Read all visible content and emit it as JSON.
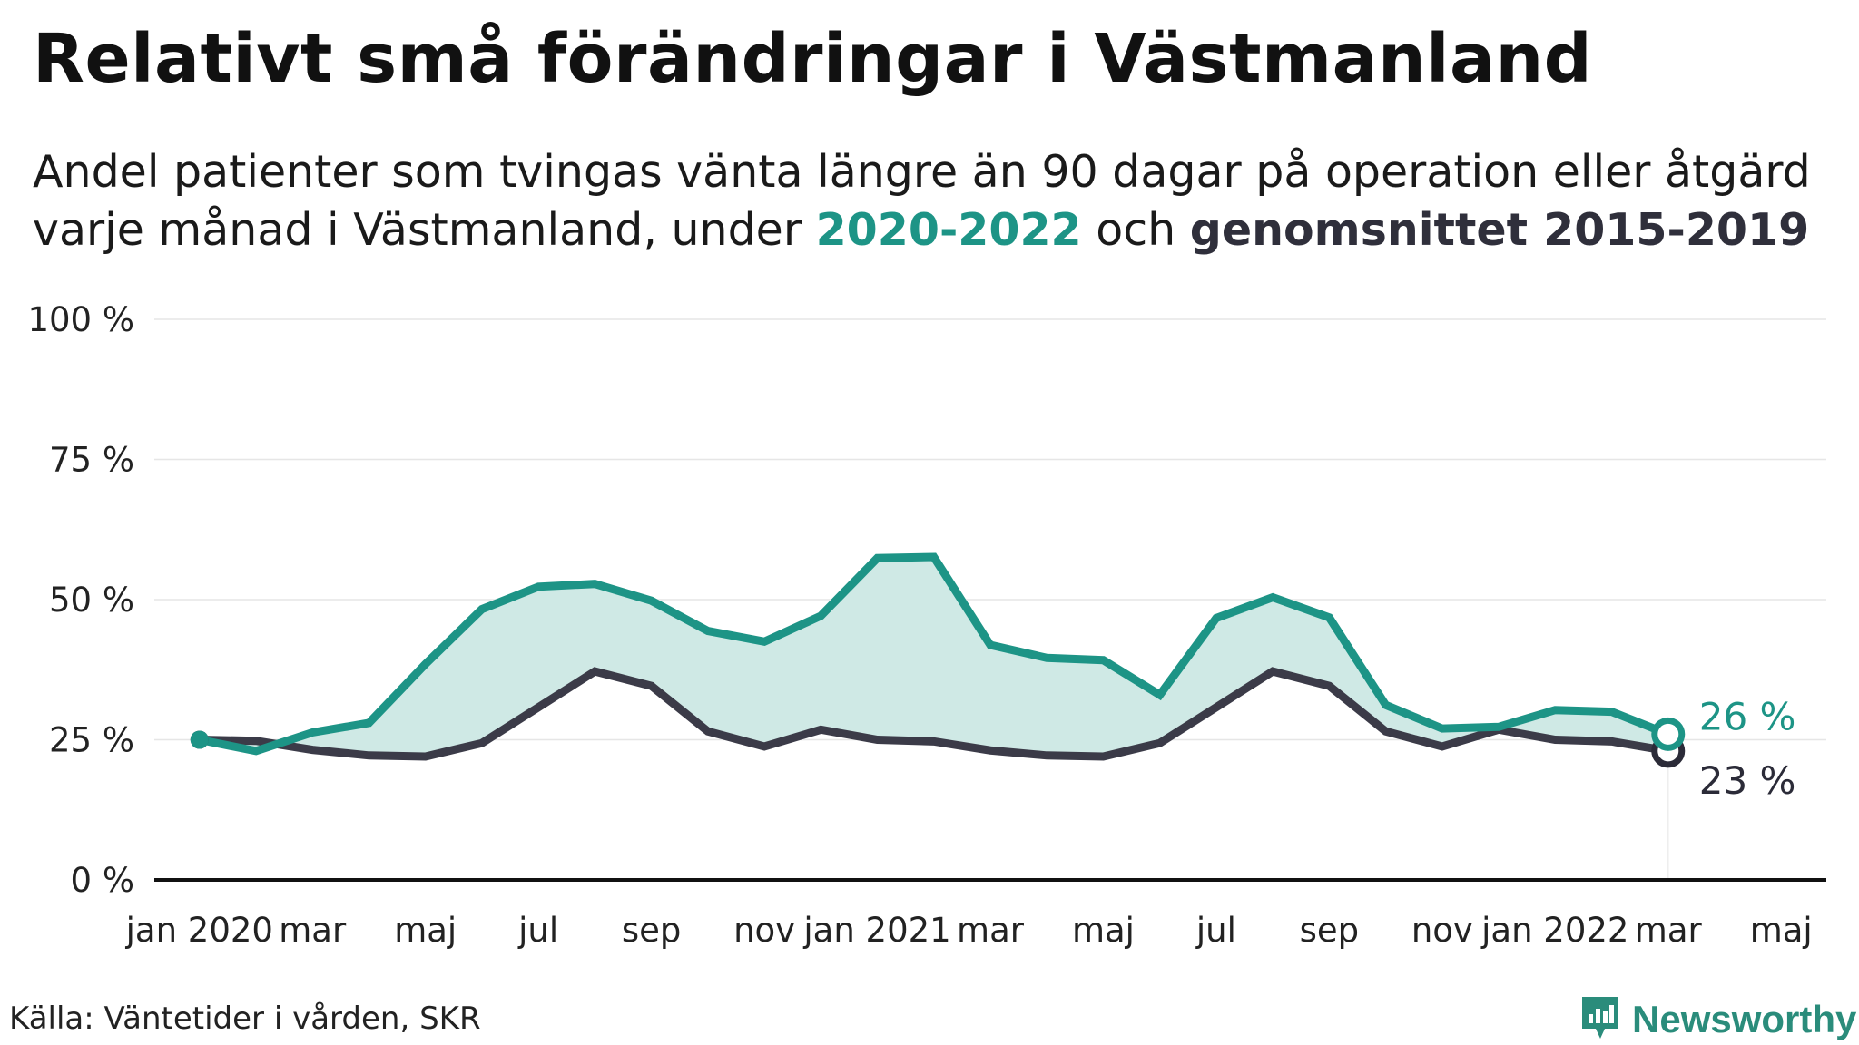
{
  "title": "Relativt små förändringar i Västmanland",
  "subtitle": {
    "line1": "Andel patienter som tvingas vänta längre än 90 dagar på operation eller åtgärd",
    "line2_prefix": "varje månad i Västmanland, under ",
    "highlight_current": "2020-2022",
    "line2_middle": " och ",
    "highlight_average": "genomsnittet 2015-2019"
  },
  "colors": {
    "current": "#1d9486",
    "average": "#3b3b48",
    "fill": "#cfe9e5",
    "grid": "#e6e6e6",
    "axis": "#111111"
  },
  "chart_data": {
    "type": "line",
    "ylim": [
      0,
      100
    ],
    "y_ticks": [
      "0 %",
      "25 %",
      "50 %",
      "75 %",
      "100 %"
    ],
    "y_tick_values": [
      0,
      25,
      50,
      75,
      100
    ],
    "x_tick_labels": [
      {
        "label": "jan 2020",
        "month": 0
      },
      {
        "label": "mar",
        "month": 2
      },
      {
        "label": "maj",
        "month": 4
      },
      {
        "label": "jul",
        "month": 6
      },
      {
        "label": "sep",
        "month": 8
      },
      {
        "label": "nov",
        "month": 10
      },
      {
        "label": "jan 2021",
        "month": 12
      },
      {
        "label": "mar",
        "month": 14
      },
      {
        "label": "maj",
        "month": 16
      },
      {
        "label": "jul",
        "month": 18
      },
      {
        "label": "sep",
        "month": 20
      },
      {
        "label": "nov",
        "month": 22
      },
      {
        "label": "jan 2022",
        "month": 24
      },
      {
        "label": "mar",
        "month": 26
      },
      {
        "label": "maj",
        "month": 28
      }
    ],
    "x_range_months": [
      -0.8,
      28.8
    ],
    "series": [
      {
        "key": "current",
        "name": "2020-2022",
        "values": [
          25,
          23,
          26.3,
          28,
          38.5,
          48.3,
          52.3,
          52.8,
          49.8,
          44.4,
          42.5,
          47.1,
          57.4,
          57.6,
          41.9,
          39.6,
          39.2,
          33,
          46.7,
          50.4,
          46.8,
          31.2,
          27,
          27.3,
          30.3,
          30,
          26
        ]
      },
      {
        "key": "average",
        "name": "genomsnittet 2015-2019",
        "values": [
          25,
          24.8,
          23.2,
          22.2,
          22,
          24.4,
          30.8,
          37.2,
          34.6,
          26.5,
          23.8,
          26.8,
          25,
          24.7,
          23.1,
          22.2,
          22,
          24.4,
          30.8,
          37.2,
          34.6,
          26.5,
          23.8,
          26.8,
          25,
          24.7,
          23
        ]
      }
    ],
    "end_labels": {
      "current": "26 %",
      "average": "23 %"
    }
  },
  "source": "Källa: Väntetider i vården, SKR",
  "brand": {
    "name": "Newsworthy",
    "icon": "newsworthy-logo-icon"
  }
}
